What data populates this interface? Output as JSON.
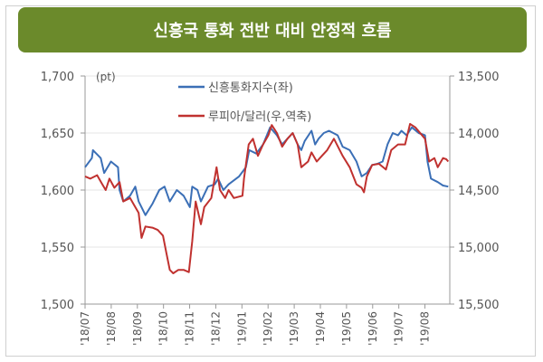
{
  "title": "신흥국 통화 전반 대비 안정적 흐름",
  "colors": {
    "title_bg": "#6b8a2b",
    "blue": "#3b6fb6",
    "red": "#c0312f"
  },
  "chart_data": {
    "type": "line",
    "title": "신흥국 통화 전반 대비 안정적 흐름",
    "unit_label": "(pt)",
    "x_unit": "months since 2018-07",
    "x_ticks": [
      "'18/07",
      "'18/08",
      "'18/09",
      "'18/10",
      "'18/11",
      "'18/12",
      "'19/01",
      "'19/02",
      "'19/03",
      "'19/04",
      "'19/05",
      "'19/06",
      "'19/07",
      "'19/08"
    ],
    "xlim": [
      0,
      13.95
    ],
    "y_left": {
      "ticks": [
        "1,500",
        "1,550",
        "1,600",
        "1,650",
        "1,700"
      ],
      "range": [
        1500,
        1700
      ]
    },
    "y_right": {
      "ticks": [
        "15,500",
        "15,000",
        "14,500",
        "14,000",
        "13,500"
      ],
      "range": [
        15500,
        13500
      ],
      "inverted": true
    },
    "grid": true,
    "legend_position": "top-center",
    "series": [
      {
        "name": "신흥통화지수(좌)",
        "axis": "left",
        "color": "#3b6fb6",
        "x": [
          0,
          0.26,
          0.3,
          0.6,
          0.73,
          0.99,
          1.26,
          1.32,
          1.46,
          1.72,
          1.92,
          2.05,
          2.31,
          2.58,
          2.84,
          3.04,
          3.24,
          3.51,
          3.77,
          4.01,
          4.1,
          4.3,
          4.43,
          4.7,
          4.96,
          5.09,
          5.29,
          5.49,
          5.89,
          6.15,
          6.28,
          6.55,
          6.81,
          7.08,
          7.34,
          7.54,
          7.74,
          7.94,
          8.13,
          8.27,
          8.4,
          8.66,
          8.8,
          8.93,
          9.13,
          9.33,
          9.66,
          9.85,
          10.12,
          10.38,
          10.58,
          10.78,
          10.98,
          11.18,
          11.38,
          11.57,
          11.77,
          11.97,
          12.1,
          12.3,
          12.5,
          12.76,
          13.0,
          13.1,
          13.23,
          13.49,
          13.69,
          13.89
        ],
        "y": [
          1620,
          1628,
          1635,
          1628,
          1615,
          1625,
          1620,
          1600,
          1590,
          1595,
          1603,
          1590,
          1578,
          1588,
          1600,
          1603,
          1590,
          1600,
          1595,
          1585,
          1603,
          1600,
          1590,
          1603,
          1605,
          1610,
          1600,
          1605,
          1612,
          1620,
          1635,
          1632,
          1640,
          1655,
          1648,
          1640,
          1645,
          1650,
          1640,
          1635,
          1643,
          1652,
          1640,
          1645,
          1650,
          1652,
          1648,
          1638,
          1635,
          1625,
          1612,
          1615,
          1622,
          1623,
          1625,
          1640,
          1650,
          1648,
          1652,
          1648,
          1655,
          1650,
          1648,
          1625,
          1610,
          1607,
          1604,
          1603
        ]
      },
      {
        "name": "루피아/달러(우,역축)",
        "axis": "right",
        "color": "#c0312f",
        "x": [
          0,
          0.2,
          0.46,
          0.66,
          0.79,
          0.93,
          1.12,
          1.32,
          1.46,
          1.72,
          1.92,
          2.05,
          2.16,
          2.31,
          2.58,
          2.78,
          2.98,
          3.11,
          3.24,
          3.37,
          3.57,
          3.77,
          3.97,
          4.1,
          4.23,
          4.43,
          4.56,
          4.83,
          5.03,
          5.16,
          5.36,
          5.49,
          5.69,
          6.02,
          6.08,
          6.26,
          6.42,
          6.61,
          6.81,
          7.01,
          7.14,
          7.34,
          7.54,
          7.74,
          7.94,
          8.13,
          8.27,
          8.53,
          8.66,
          8.86,
          9.06,
          9.26,
          9.52,
          9.85,
          10.12,
          10.38,
          10.58,
          10.67,
          10.78,
          10.98,
          11.24,
          11.51,
          11.71,
          11.97,
          12.24,
          12.43,
          12.63,
          13.0,
          13.16,
          13.36,
          13.49,
          13.69,
          13.82,
          13.89
        ],
        "y": [
          14380,
          14400,
          14370,
          14450,
          14500,
          14400,
          14480,
          14430,
          14600,
          14570,
          14650,
          14700,
          14920,
          14820,
          14830,
          14850,
          14900,
          15050,
          15200,
          15230,
          15200,
          15200,
          15220,
          14950,
          14600,
          14800,
          14650,
          14570,
          14300,
          14500,
          14570,
          14500,
          14570,
          14550,
          14400,
          14100,
          14050,
          14200,
          14100,
          14020,
          13930,
          14000,
          14120,
          14050,
          14000,
          14100,
          14300,
          14250,
          14170,
          14250,
          14200,
          14150,
          14050,
          14200,
          14300,
          14450,
          14480,
          14520,
          14380,
          14280,
          14270,
          14320,
          14150,
          14100,
          14100,
          13920,
          13950,
          14050,
          14250,
          14220,
          14300,
          14220,
          14230,
          14250
        ]
      }
    ]
  }
}
